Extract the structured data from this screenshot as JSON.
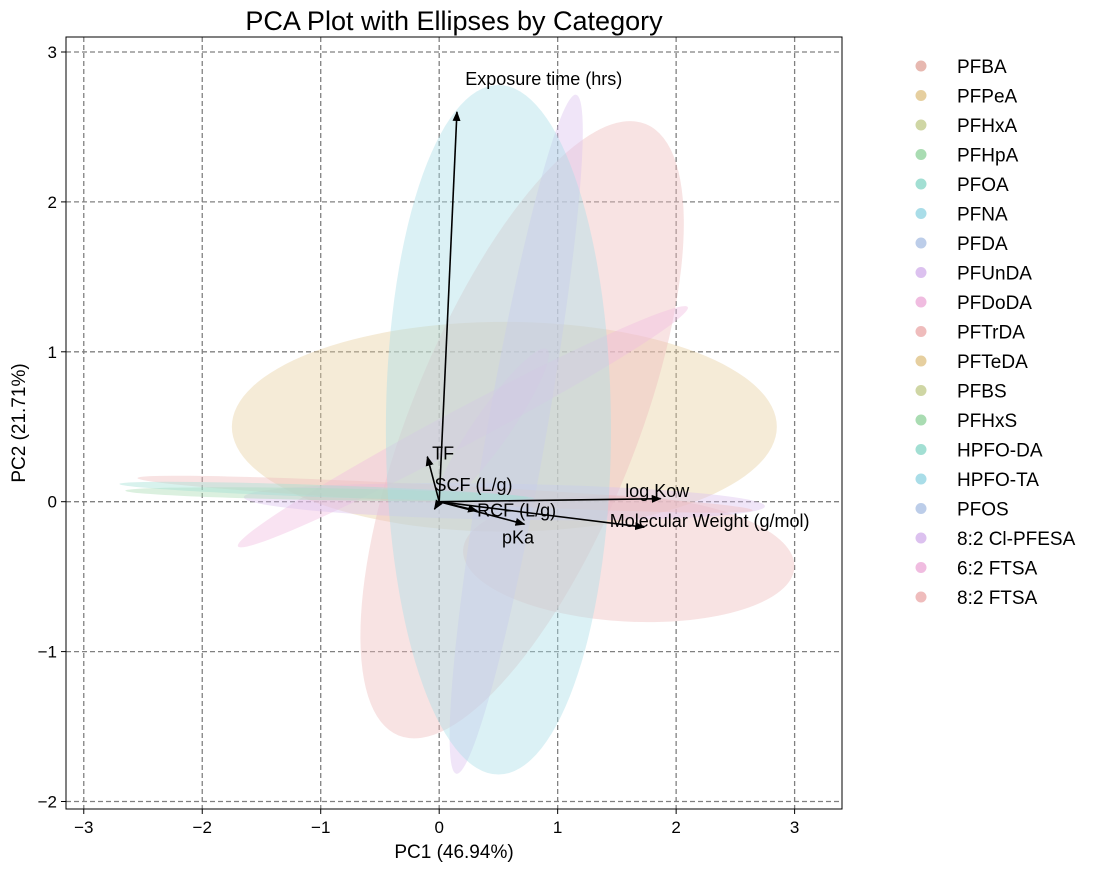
{
  "chart_data": {
    "type": "scatter",
    "title": "PCA Plot with Ellipses by Category",
    "xlabel": "PC1 (46.94%)",
    "ylabel": "PC2 (21.71%)",
    "xlim": [
      -3.15,
      3.4
    ],
    "ylim": [
      -2.05,
      3.1
    ],
    "xticks": [
      -3,
      -2,
      -1,
      0,
      1,
      2,
      3
    ],
    "yticks": [
      -2,
      -1,
      0,
      1,
      2,
      3
    ],
    "xtick_labels": [
      "−3",
      "−2",
      "−1",
      "0",
      "1",
      "2",
      "3"
    ],
    "ytick_labels": [
      "−2",
      "−1",
      "0",
      "1",
      "2",
      "3"
    ],
    "grid": true,
    "legend_position": "outside-right",
    "series": [
      {
        "name": "PFBA",
        "color": "#e7b8b0"
      },
      {
        "name": "PFPeA",
        "color": "#e6cf9f"
      },
      {
        "name": "PFHxA",
        "color": "#cfd6a4"
      },
      {
        "name": "PFHpA",
        "color": "#a9dcb2"
      },
      {
        "name": "PFOA",
        "color": "#a2dfd3"
      },
      {
        "name": "PFNA",
        "color": "#a9dde8"
      },
      {
        "name": "PFDA",
        "color": "#bccde9"
      },
      {
        "name": "PFUnDA",
        "color": "#dcc1ef"
      },
      {
        "name": "PFDoDA",
        "color": "#f0bce0"
      },
      {
        "name": "PFTrDA",
        "color": "#efbcbc"
      },
      {
        "name": "PFTeDA",
        "color": "#e6cf9f"
      },
      {
        "name": "PFBS",
        "color": "#cfd6a4"
      },
      {
        "name": "PFHxS",
        "color": "#a9dcb2"
      },
      {
        "name": "HPFO-DA",
        "color": "#a2dfd3"
      },
      {
        "name": "HPFO-TA",
        "color": "#a9dde8"
      },
      {
        "name": "PFOS",
        "color": "#bccde9"
      },
      {
        "name": "8:2 Cl-PFESA",
        "color": "#dcc1ef"
      },
      {
        "name": "6:2 FTSA",
        "color": "#f0bce0"
      },
      {
        "name": "8:2 FTSA",
        "color": "#efbcbc"
      }
    ],
    "ellipses": [
      {
        "cx": 0.55,
        "cy": 0.5,
        "rx": 2.3,
        "ry": 0.7,
        "angle": 0,
        "color": "#e6cf9f"
      },
      {
        "cx": 1.6,
        "cy": -0.38,
        "rx": 1.4,
        "ry": 0.42,
        "angle": -3,
        "color": "#efbcbc"
      },
      {
        "cx": 0.7,
        "cy": 0.48,
        "rx": 0.95,
        "ry": 2.2,
        "angle": -22,
        "color": "#efbcbc"
      },
      {
        "cx": 0.65,
        "cy": 0.45,
        "rx": 0.25,
        "ry": 2.3,
        "angle": -10,
        "color": "#dcc1ef"
      },
      {
        "cx": 0.45,
        "cy": 0.5,
        "rx": 0.8,
        "ry": 0.12,
        "angle": 55,
        "color": "#f0bce0"
      },
      {
        "cx": 0.2,
        "cy": 0.5,
        "rx": 2.15,
        "ry": 0.12,
        "angle": 28,
        "color": "#f0bce0"
      },
      {
        "cx": 0.55,
        "cy": 0.0,
        "rx": 2.2,
        "ry": 0.12,
        "angle": -1,
        "color": "#dcc1ef"
      },
      {
        "cx": 0.05,
        "cy": 0.05,
        "rx": 2.6,
        "ry": 0.06,
        "angle": -3,
        "color": "#efbcbc"
      },
      {
        "cx": -0.95,
        "cy": 0.05,
        "rx": 1.7,
        "ry": 0.04,
        "angle": -1,
        "color": "#a9dcb2"
      },
      {
        "cx": -0.95,
        "cy": 0.07,
        "rx": 1.75,
        "ry": 0.04,
        "angle": -2,
        "color": "#a2dfd3"
      },
      {
        "cx": 0.5,
        "cy": 0.48,
        "rx": 0.95,
        "ry": 2.3,
        "angle": 0,
        "color": "#a9dde8"
      }
    ],
    "loadings": [
      {
        "label": "Exposure time  (hrs)",
        "x": 0.15,
        "y": 2.6,
        "lx": 0.22,
        "ly": 2.78
      },
      {
        "label": "TF",
        "x": -0.1,
        "y": 0.3,
        "lx": -0.06,
        "ly": 0.28
      },
      {
        "label": "SCF (L/g)",
        "x": -0.04,
        "y": -0.05,
        "lx": -0.04,
        "ly": 0.07
      },
      {
        "label": "RCF (L/g)",
        "x": 0.32,
        "y": -0.06,
        "lx": 0.32,
        "ly": -0.1
      },
      {
        "label": "pKa",
        "x": 0.72,
        "y": -0.15,
        "lx": 0.53,
        "ly": -0.28
      },
      {
        "label": "log Kow",
        "x": 1.87,
        "y": 0.02,
        "lx": 1.57,
        "ly": 0.03
      },
      {
        "label": "Molecular Weight (g/mol)",
        "x": 1.73,
        "y": -0.17,
        "lx": 1.44,
        "ly": -0.17
      }
    ]
  }
}
